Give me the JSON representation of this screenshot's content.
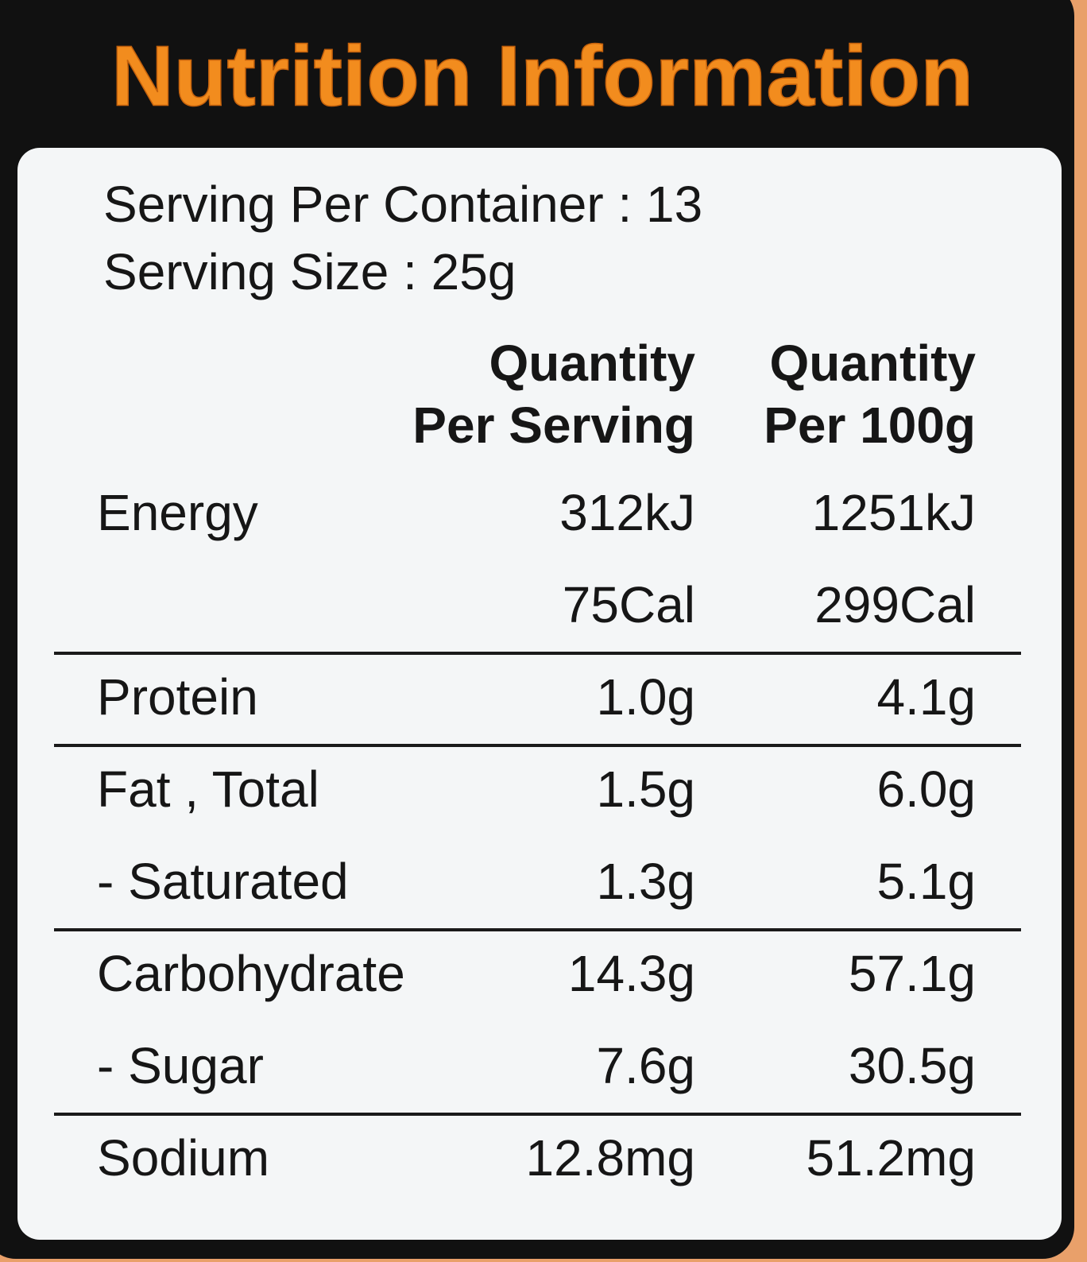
{
  "header": {
    "title": "Nutrition Information"
  },
  "serving": {
    "per_container": "Serving Per Container : 13",
    "size": "Serving Size : 25g"
  },
  "table": {
    "columns": [
      [
        "Quantity",
        "Per Serving"
      ],
      [
        "Quantity",
        "Per 100g"
      ]
    ],
    "groups": [
      [
        {
          "name": "Energy",
          "per_serving": "312kJ",
          "per_100g": "1251kJ"
        },
        {
          "per_serving": "75Cal",
          "per_100g": "299Cal"
        }
      ],
      [
        {
          "name": "Protein",
          "per_serving": "1.0g",
          "per_100g": "4.1g"
        }
      ],
      [
        {
          "name": "Fat , Total",
          "per_serving": "1.5g",
          "per_100g": "6.0g"
        },
        {
          "name": "- Saturated",
          "per_serving": "1.3g",
          "per_100g": "5.1g"
        }
      ],
      [
        {
          "name": "Carbohydrate",
          "per_serving": "14.3g",
          "per_100g": "57.1g"
        },
        {
          "name": "- Sugar",
          "per_serving": "7.6g",
          "per_100g": "30.5g"
        }
      ],
      [
        {
          "name": "Sodium",
          "per_serving": "12.8mg",
          "per_100g": "51.2mg"
        }
      ]
    ]
  }
}
